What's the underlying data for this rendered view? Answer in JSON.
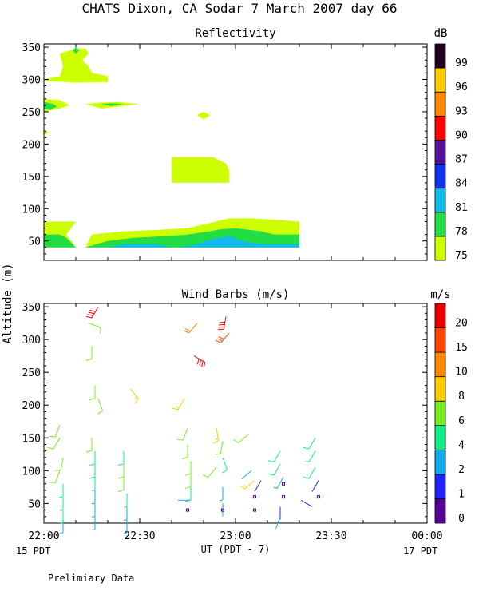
{
  "header": {
    "title": "CHATS Dixon, CA  Sodar   7 March 2007  day  66",
    "footer_note": "Prelimiary Data",
    "y_label_shared": "Altitude (m)",
    "x_label": "UT  (PDT - 7)",
    "date_left": "15 PDT",
    "date_right": "17 PDT"
  },
  "chart_data": [
    {
      "type": "contour",
      "title": "Reflectivity",
      "x_ticks": [
        "22:00",
        "22:30",
        "23:00",
        "23:30",
        "00:00"
      ],
      "x_range_minutes": [
        0,
        120
      ],
      "y_ticks": [
        50,
        100,
        150,
        200,
        250,
        300,
        350
      ],
      "ylim": [
        20,
        355
      ],
      "colorbar": {
        "unit": "dB",
        "levels": [
          75,
          78,
          81,
          84,
          87,
          90,
          93,
          96,
          99
        ],
        "colors": [
          "#ccff00",
          "#22dd44",
          "#11bbee",
          "#1133ee",
          "#551199",
          "#ff0000",
          "#ff8800",
          "#ffcc00",
          "#220022"
        ]
      },
      "regions": [
        {
          "level": 75,
          "points": [
            [
              0,
              80
            ],
            [
              10,
              80
            ],
            [
              7,
              60
            ],
            [
              10,
              40
            ],
            [
              0,
              40
            ]
          ]
        },
        {
          "level": 75,
          "points": [
            [
              13,
              40
            ],
            [
              15,
              60
            ],
            [
              25,
              65
            ],
            [
              35,
              67
            ],
            [
              45,
              70
            ],
            [
              52,
              78
            ],
            [
              58,
              85
            ],
            [
              65,
              85
            ],
            [
              75,
              82
            ],
            [
              80,
              80
            ],
            [
              80,
              40
            ]
          ]
        },
        {
          "level": 78,
          "points": [
            [
              0,
              60
            ],
            [
              5,
              60
            ],
            [
              7,
              55
            ],
            [
              10,
              40
            ],
            [
              0,
              40
            ]
          ]
        },
        {
          "level": 78,
          "points": [
            [
              13,
              40
            ],
            [
              20,
              50
            ],
            [
              28,
              55
            ],
            [
              40,
              58
            ],
            [
              45,
              60
            ],
            [
              52,
              65
            ],
            [
              55,
              68
            ],
            [
              60,
              70
            ],
            [
              68,
              65
            ],
            [
              72,
              60
            ],
            [
              80,
              60
            ],
            [
              80,
              40
            ]
          ]
        },
        {
          "level": 81,
          "points": [
            [
              20,
              40
            ],
            [
              25,
              45
            ],
            [
              35,
              45
            ],
            [
              40,
              40
            ]
          ]
        },
        {
          "level": 81,
          "points": [
            [
              42,
              40
            ],
            [
              48,
              45
            ],
            [
              52,
              52
            ],
            [
              55,
              55
            ],
            [
              58,
              58
            ],
            [
              62,
              50
            ],
            [
              68,
              45
            ],
            [
              75,
              45
            ],
            [
              80,
              45
            ],
            [
              80,
              40
            ]
          ]
        },
        {
          "level": 75,
          "points": [
            [
              0,
              300
            ],
            [
              5,
              305
            ],
            [
              6,
              320
            ],
            [
              5,
              340
            ],
            [
              10,
              348
            ],
            [
              13,
              348
            ],
            [
              14,
              340
            ],
            [
              12,
              330
            ],
            [
              14,
              320
            ],
            [
              15,
              310
            ],
            [
              20,
              305
            ],
            [
              20,
              296
            ],
            [
              10,
              295
            ],
            [
              0,
              298
            ]
          ]
        },
        {
          "level": 78,
          "points": [
            [
              9,
              345
            ],
            [
              10,
              340
            ],
            [
              11,
              345
            ],
            [
              10,
              350
            ]
          ]
        },
        {
          "level": 75,
          "points": [
            [
              0,
              270
            ],
            [
              5,
              268
            ],
            [
              8,
              260
            ],
            [
              5,
              255
            ],
            [
              0,
              250
            ]
          ]
        },
        {
          "level": 78,
          "points": [
            [
              0,
              265
            ],
            [
              3,
              262
            ],
            [
              4,
              258
            ],
            [
              2,
              253
            ],
            [
              0,
              254
            ]
          ]
        },
        {
          "level": 75,
          "points": [
            [
              13,
              262
            ],
            [
              17,
              264
            ],
            [
              23,
              265
            ],
            [
              30,
              262
            ],
            [
              23,
              258
            ],
            [
              18,
              255
            ]
          ]
        },
        {
          "level": 78,
          "points": [
            [
              18,
              262
            ],
            [
              21,
              263
            ],
            [
              25,
              262
            ],
            [
              21,
              259
            ]
          ]
        },
        {
          "level": 75,
          "points": [
            [
              0,
              220
            ],
            [
              2,
              218
            ],
            [
              0,
              215
            ]
          ]
        },
        {
          "level": 75,
          "points": [
            [
              48,
              180
            ],
            [
              53,
              180
            ],
            [
              57,
              170
            ],
            [
              58,
              160
            ],
            [
              58,
              140
            ],
            [
              40,
              140
            ],
            [
              40,
              180
            ]
          ]
        },
        {
          "level": 75,
          "points": [
            [
              48,
              245
            ],
            [
              50,
              250
            ],
            [
              52,
              245
            ],
            [
              50,
              238
            ]
          ]
        }
      ]
    },
    {
      "type": "wind_barbs",
      "title": "Wind Barbs (m/s)",
      "x_ticks": [
        "22:00",
        "22:30",
        "23:00",
        "23:30",
        "00:00"
      ],
      "x_range_minutes": [
        0,
        120
      ],
      "y_ticks": [
        50,
        100,
        150,
        200,
        250,
        300,
        350
      ],
      "ylim": [
        20,
        355
      ],
      "colorbar": {
        "unit": "m/s",
        "levels": [
          0,
          1,
          2,
          4,
          6,
          8,
          10,
          15,
          20
        ],
        "colors": [
          "#550099",
          "#2222ff",
          "#11aaee",
          "#11ee88",
          "#77ee22",
          "#ffcc00",
          "#ff8800",
          "#ff4400",
          "#ee0000"
        ]
      },
      "barbs": [
        {
          "t": 5,
          "z": 170,
          "s": 6,
          "d": 200
        },
        {
          "t": 5,
          "z": 150,
          "s": 6,
          "d": 210
        },
        {
          "t": 6,
          "z": 120,
          "s": 6,
          "d": 190
        },
        {
          "t": 5,
          "z": 100,
          "s": 6,
          "d": 200
        },
        {
          "t": 6,
          "z": 80,
          "s": 5,
          "d": 180
        },
        {
          "t": 6,
          "z": 60,
          "s": 4,
          "d": 180
        },
        {
          "t": 6,
          "z": 40,
          "s": 4,
          "d": 180
        },
        {
          "t": 6,
          "z": 25,
          "s": 3,
          "d": 180
        },
        {
          "t": 15,
          "z": 150,
          "s": 6,
          "d": 180
        },
        {
          "t": 16,
          "z": 130,
          "s": 5,
          "d": 180
        },
        {
          "t": 16,
          "z": 110,
          "s": 5,
          "d": 180
        },
        {
          "t": 16,
          "z": 90,
          "s": 4,
          "d": 180
        },
        {
          "t": 16,
          "z": 70,
          "s": 3,
          "d": 180
        },
        {
          "t": 16,
          "z": 50,
          "s": 3,
          "d": 180
        },
        {
          "t": 16,
          "z": 30,
          "s": 3,
          "d": 180
        },
        {
          "t": 17,
          "z": 210,
          "s": 7,
          "d": 160
        },
        {
          "t": 16,
          "z": 230,
          "s": 6,
          "d": 180
        },
        {
          "t": 15,
          "z": 290,
          "s": 6,
          "d": 180
        },
        {
          "t": 14,
          "z": 325,
          "s": 6,
          "d": 110
        },
        {
          "t": 17,
          "z": 350,
          "s": 20,
          "d": 210
        },
        {
          "t": 25,
          "z": 130,
          "s": 5,
          "d": 180
        },
        {
          "t": 25,
          "z": 110,
          "s": 6,
          "d": 180
        },
        {
          "t": 25,
          "z": 90,
          "s": 7,
          "d": 180
        },
        {
          "t": 26,
          "z": 65,
          "s": 4,
          "d": 180
        },
        {
          "t": 26,
          "z": 45,
          "s": 3,
          "d": 180
        },
        {
          "t": 26,
          "z": 25,
          "s": 3,
          "d": 180
        },
        {
          "t": 27,
          "z": 225,
          "s": 8,
          "d": 140
        },
        {
          "t": 45,
          "z": 165,
          "s": 7,
          "d": 200
        },
        {
          "t": 45,
          "z": 140,
          "s": 6,
          "d": 180
        },
        {
          "t": 46,
          "z": 115,
          "s": 6,
          "d": 180
        },
        {
          "t": 46,
          "z": 95,
          "s": 6,
          "d": 180
        },
        {
          "t": 46,
          "z": 75,
          "s": 5,
          "d": 180
        },
        {
          "t": 46,
          "z": 55,
          "s": 2,
          "d": 270
        },
        {
          "t": 45,
          "z": 40,
          "s": 0,
          "d": 0
        },
        {
          "t": 44,
          "z": 210,
          "s": 9,
          "d": 210
        },
        {
          "t": 47,
          "z": 275,
          "s": 20,
          "d": 120
        },
        {
          "t": 48,
          "z": 325,
          "s": 12,
          "d": 220
        },
        {
          "t": 54,
          "z": 165,
          "s": 8,
          "d": 170
        },
        {
          "t": 56,
          "z": 145,
          "s": 6,
          "d": 190
        },
        {
          "t": 56,
          "z": 120,
          "s": 5,
          "d": 160
        },
        {
          "t": 54,
          "z": 105,
          "s": 7,
          "d": 220
        },
        {
          "t": 56,
          "z": 75,
          "s": 3,
          "d": 180
        },
        {
          "t": 56,
          "z": 50,
          "s": 2,
          "d": 180
        },
        {
          "t": 56,
          "z": 40,
          "s": 0,
          "d": 0
        },
        {
          "t": 58,
          "z": 310,
          "s": 15,
          "d": 220
        },
        {
          "t": 57,
          "z": 335,
          "s": 20,
          "d": 190
        },
        {
          "t": 64,
          "z": 155,
          "s": 6,
          "d": 230
        },
        {
          "t": 65,
          "z": 100,
          "s": 2,
          "d": 230
        },
        {
          "t": 66,
          "z": 85,
          "s": 8,
          "d": 230
        },
        {
          "t": 66,
          "z": 60,
          "s": 0,
          "d": 0
        },
        {
          "t": 66,
          "z": 40,
          "s": 0,
          "d": 0
        },
        {
          "t": 68,
          "z": 85,
          "s": 1,
          "d": 210
        },
        {
          "t": 74,
          "z": 130,
          "s": 5,
          "d": 210
        },
        {
          "t": 74,
          "z": 110,
          "s": 5,
          "d": 210
        },
        {
          "t": 75,
          "z": 90,
          "s": 3,
          "d": 210
        },
        {
          "t": 75,
          "z": 80,
          "s": 0,
          "d": 0
        },
        {
          "t": 75,
          "z": 60,
          "s": 0,
          "d": 0
        },
        {
          "t": 74,
          "z": 45,
          "s": 1,
          "d": 180
        },
        {
          "t": 74,
          "z": 30,
          "s": 2,
          "d": 200
        },
        {
          "t": 85,
          "z": 150,
          "s": 5,
          "d": 210
        },
        {
          "t": 85,
          "z": 130,
          "s": 4,
          "d": 210
        },
        {
          "t": 85,
          "z": 105,
          "s": 5,
          "d": 210
        },
        {
          "t": 86,
          "z": 85,
          "s": 1,
          "d": 210
        },
        {
          "t": 86,
          "z": 60,
          "s": 0,
          "d": 0
        },
        {
          "t": 84,
          "z": 45,
          "s": 1,
          "d": 300
        }
      ]
    }
  ]
}
